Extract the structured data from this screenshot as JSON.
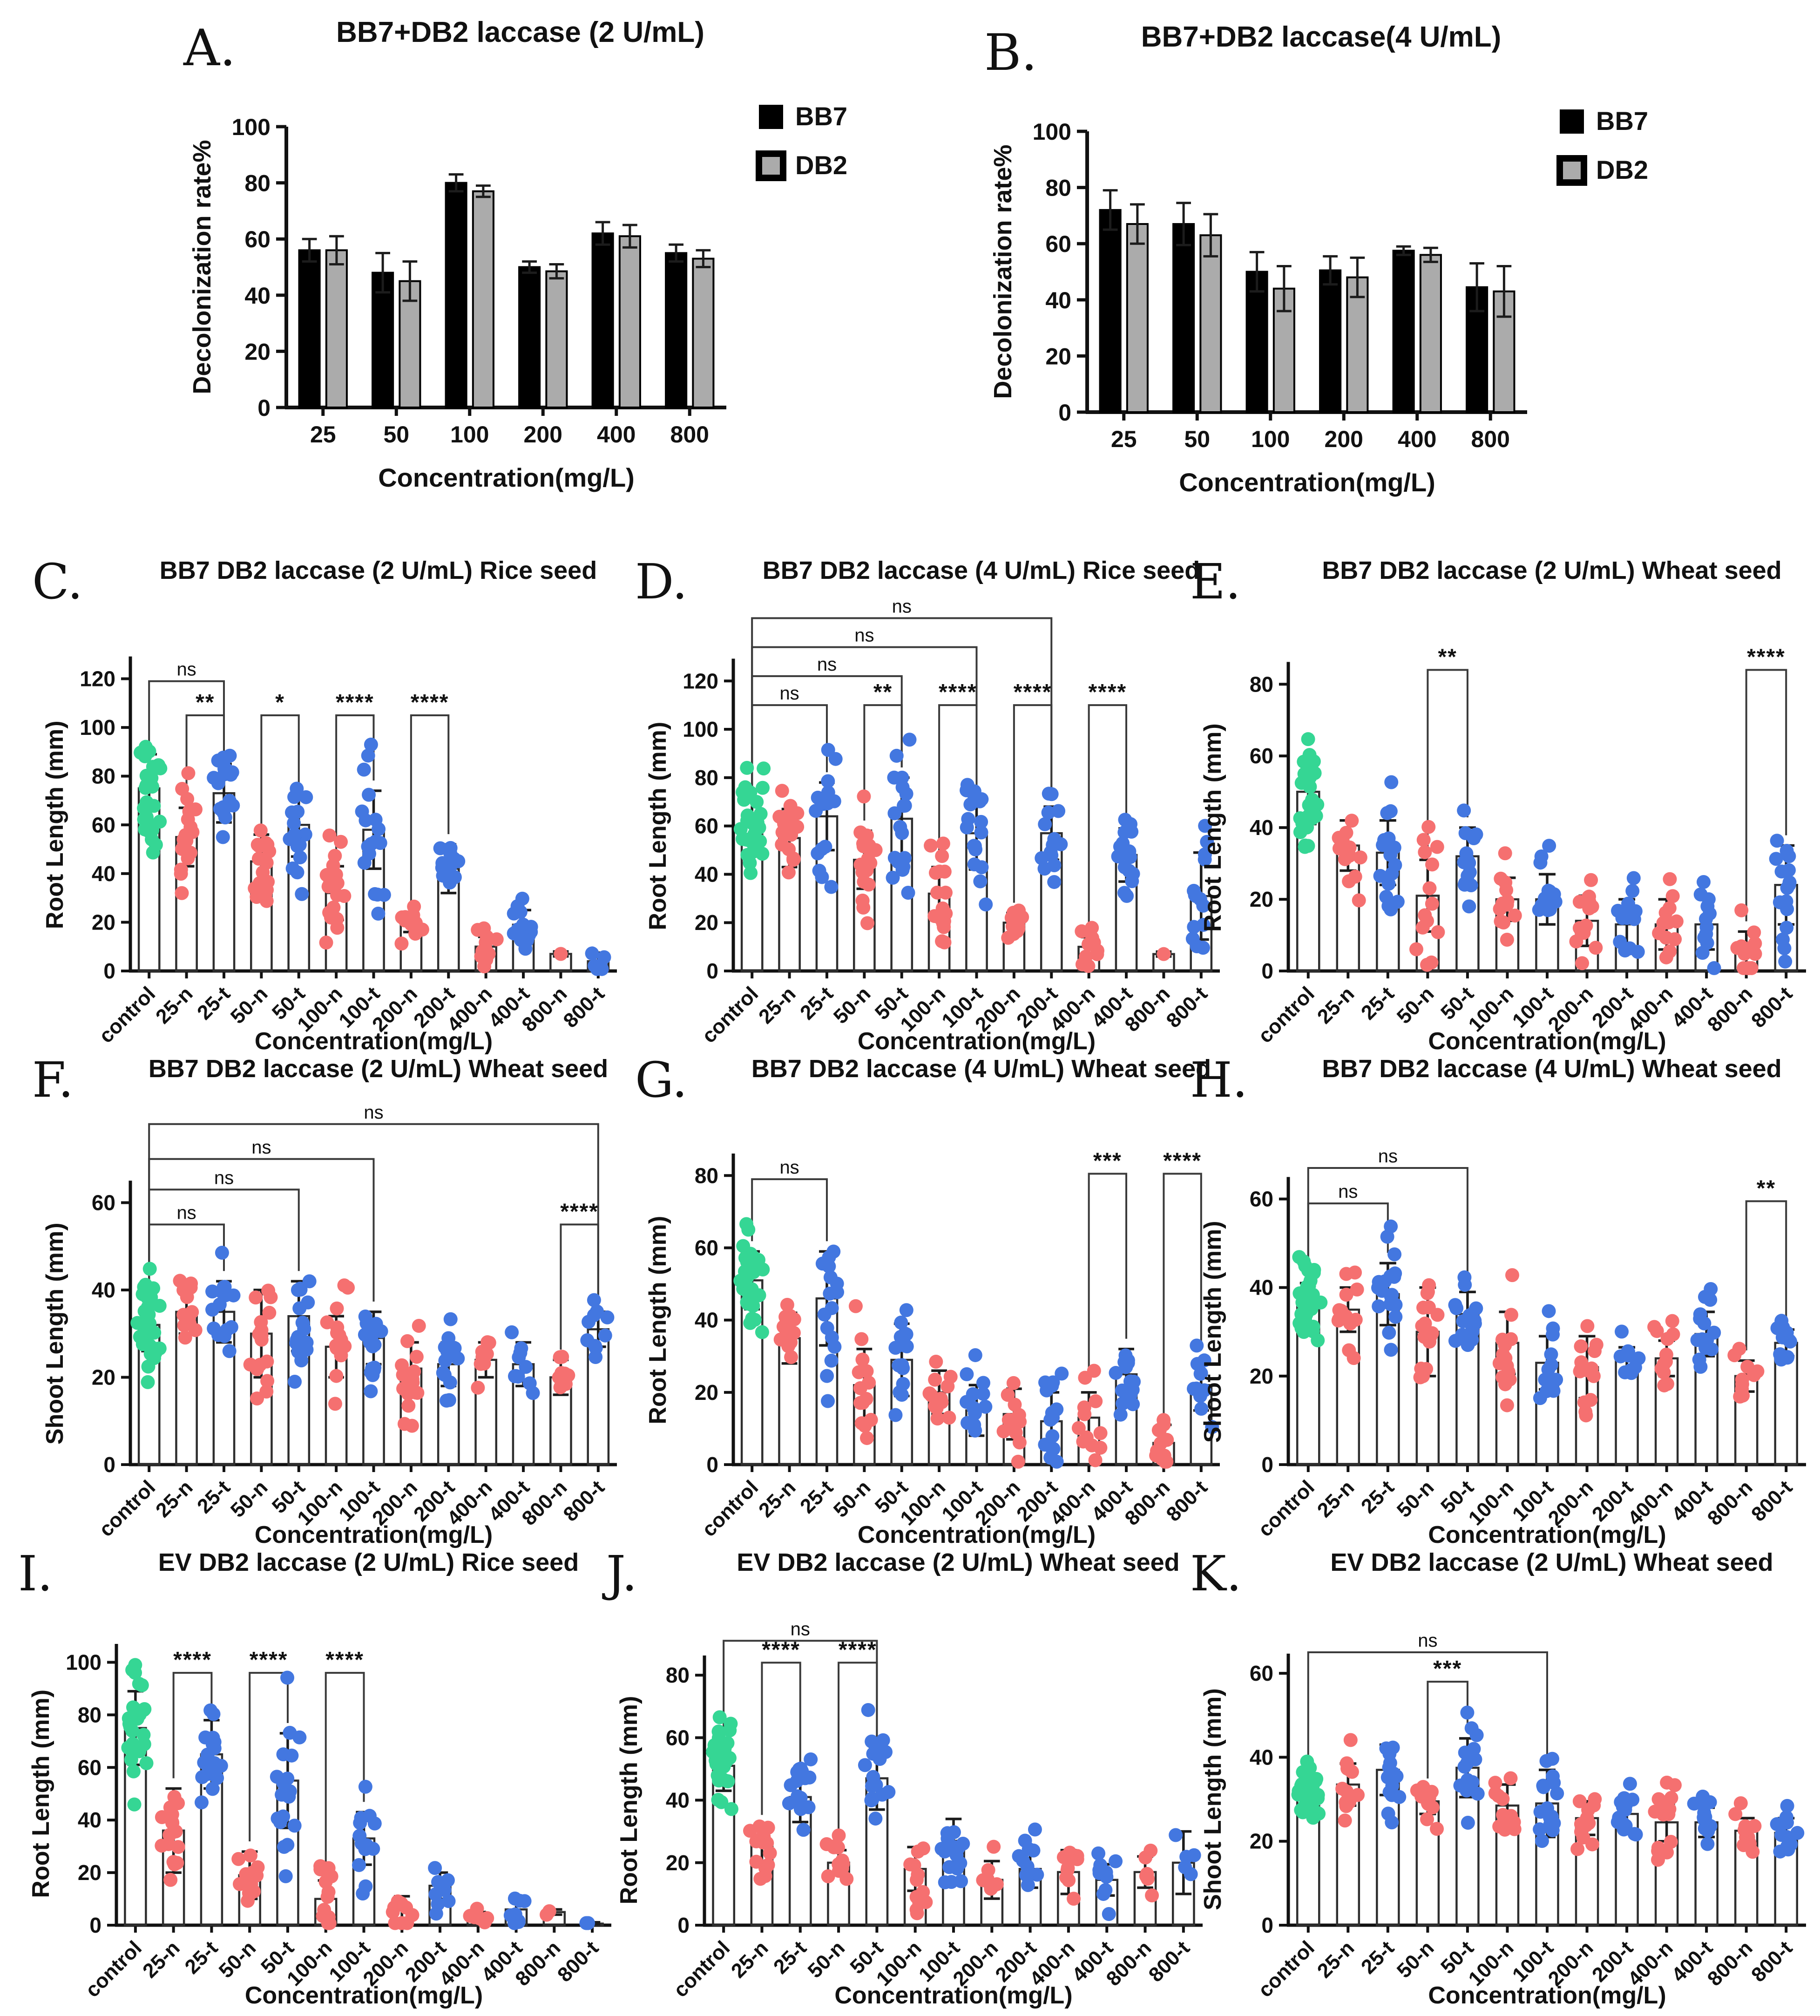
{
  "figure": {
    "background": "#ffffff",
    "shared_xlabel": "Concentration(mg/L)",
    "dot_categories": [
      "control",
      "25-n",
      "25-t",
      "50-n",
      "50-t",
      "100-n",
      "100-t",
      "200-n",
      "200-t",
      "400-n",
      "400-t",
      "800-n",
      "800-t"
    ],
    "bar_categories": [
      "25",
      "50",
      "100",
      "200",
      "400",
      "800"
    ]
  },
  "colors": {
    "control_dot": "#35d694",
    "n_dot": "#f57070",
    "t_dot": "#4377e0",
    "bb7_bar": "#000000",
    "db2_bar": "#ababab",
    "bar_fill": "#ffffff",
    "bar_stroke": "#2e2e2e",
    "axis": "#111111",
    "error": "#1c1c1c",
    "bracket": "#3a3a3a"
  },
  "chart_data": [
    {
      "id": "A",
      "letter": "A.",
      "type": "grouped_bar",
      "title": "BB7+DB2 laccase (2 U/mL)",
      "ylabel": "Decolonization rate%",
      "xlabel": "Concentration(mg/L)",
      "ylim": [
        0,
        100
      ],
      "yticks": [
        0,
        20,
        40,
        60,
        80,
        100
      ],
      "categories": [
        "25",
        "50",
        "100",
        "200",
        "400",
        "800"
      ],
      "legend": [
        "BB7",
        "DB2"
      ],
      "series": [
        {
          "name": "BB7",
          "values": [
            56,
            48,
            80,
            50,
            62,
            55
          ],
          "errors": [
            4,
            7,
            3,
            2,
            4,
            3
          ]
        },
        {
          "name": "DB2",
          "values": [
            56,
            45,
            77,
            48.5,
            61,
            53
          ],
          "errors": [
            5,
            7,
            2,
            2.5,
            4,
            3
          ]
        }
      ]
    },
    {
      "id": "B",
      "letter": "B.",
      "type": "grouped_bar",
      "title": "BB7+DB2 laccase(4 U/mL)",
      "ylabel": "Decolonization rate%",
      "xlabel": "Concentration(mg/L)",
      "ylim": [
        0,
        100
      ],
      "yticks": [
        0,
        20,
        40,
        60,
        80,
        100
      ],
      "categories": [
        "25",
        "50",
        "100",
        "200",
        "400",
        "800"
      ],
      "legend": [
        "BB7",
        "DB2"
      ],
      "series": [
        {
          "name": "BB7",
          "values": [
            72,
            67,
            50,
            50.5,
            57.5,
            44.5
          ],
          "errors": [
            7,
            7.5,
            7,
            5,
            1.5,
            8.5
          ]
        },
        {
          "name": "DB2",
          "values": [
            67,
            63,
            44,
            48,
            56,
            43
          ],
          "errors": [
            7,
            7.5,
            8,
            7,
            2.5,
            9
          ]
        }
      ]
    },
    {
      "id": "C",
      "letter": "C.",
      "type": "dot_bar",
      "title": "BB7 DB2 laccase (2 U/mL)  Rice seed",
      "ylabel": "Root Length (mm)",
      "xlabel": "Concentration(mg/L)",
      "yticks": [
        0,
        20,
        40,
        60,
        80,
        100,
        120
      ],
      "axis_max": 131,
      "categories": [
        "control",
        "25-n",
        "25-t",
        "50-n",
        "50-t",
        "100-n",
        "100-t",
        "200-n",
        "200-t",
        "400-n",
        "400-t",
        "800-n",
        "800-t"
      ],
      "means": [
        75,
        55,
        73,
        45,
        60,
        32,
        58,
        20,
        42,
        10,
        19,
        7,
        4
      ],
      "sds": [
        14,
        12,
        12,
        11,
        13,
        11,
        16,
        4,
        10,
        4,
        6,
        1,
        3.5
      ],
      "npoints": [
        28,
        18,
        18,
        18,
        16,
        18,
        18,
        12,
        16,
        12,
        14,
        1,
        6
      ],
      "annotations": [
        {
          "label": "ns",
          "a": 0,
          "b": 2,
          "y": 119
        },
        {
          "label": "**",
          "a": 1,
          "b": 2,
          "y": 105
        },
        {
          "label": "*",
          "a": 3,
          "b": 4,
          "y": 105
        },
        {
          "label": "****",
          "a": 5,
          "b": 6,
          "y": 105
        },
        {
          "label": "****",
          "a": 7,
          "b": 8,
          "y": 105
        }
      ]
    },
    {
      "id": "D",
      "letter": "D.",
      "type": "dot_bar",
      "title": "BB7 DB2 laccase (4 U/mL) Rice seed",
      "ylabel": "Root Length (mm)",
      "xlabel": "Concentration(mg/L)",
      "yticks": [
        0,
        20,
        40,
        60,
        80,
        100,
        120
      ],
      "axis_max": 132,
      "categories": [
        "control",
        "25-n",
        "25-t",
        "50-n",
        "50-t",
        "100-n",
        "100-t",
        "200-n",
        "200-t",
        "400-n",
        "400-t",
        "800-n",
        "800-t"
      ],
      "means": [
        60,
        55,
        64,
        46,
        63,
        32,
        57,
        20,
        57,
        10,
        48,
        7,
        31
      ],
      "sds": [
        11,
        12,
        14,
        12,
        17,
        11,
        15,
        4,
        11,
        4,
        11,
        1,
        18
      ],
      "npoints": [
        30,
        18,
        16,
        18,
        18,
        18,
        18,
        10,
        14,
        12,
        16,
        1,
        14
      ],
      "annotations": [
        {
          "label": "ns",
          "a": 0,
          "b": 2,
          "y": 110
        },
        {
          "label": "**",
          "a": 3,
          "b": 4,
          "y": 110
        },
        {
          "label": "****",
          "a": 5,
          "b": 6,
          "y": 110
        },
        {
          "label": "****",
          "a": 7,
          "b": 8,
          "y": 110
        },
        {
          "label": "****",
          "a": 9,
          "b": 10,
          "y": 110
        },
        {
          "label": "ns",
          "a": 0,
          "b": 4,
          "y": 122
        },
        {
          "label": "ns",
          "a": 0,
          "b": 6,
          "y": 134
        },
        {
          "label": "ns",
          "a": 0,
          "b": 8,
          "y": 146
        }
      ]
    },
    {
      "id": "E",
      "letter": "E.",
      "type": "dot_bar",
      "title": "BB7 DB2 laccase (2 U/mL) Wheat seed",
      "ylabel": "Root Length (mm)",
      "xlabel": "Concentration(mg/L)",
      "yticks": [
        0,
        20,
        40,
        60,
        80
      ],
      "axis_max": 89,
      "categories": [
        "control",
        "25-n",
        "25-t",
        "50-n",
        "50-t",
        "100-n",
        "100-t",
        "200-n",
        "200-t",
        "400-n",
        "400-t",
        "800-n",
        "800-t"
      ],
      "means": [
        50,
        35,
        33,
        21,
        32,
        20,
        20,
        14,
        13,
        13,
        13,
        6,
        24
      ],
      "sds": [
        9,
        7,
        9,
        10,
        8,
        6,
        7,
        7,
        7,
        7,
        7,
        5,
        11
      ],
      "npoints": [
        30,
        14,
        16,
        14,
        14,
        12,
        16,
        14,
        14,
        12,
        12,
        12,
        16
      ],
      "annotations": [
        {
          "label": "**",
          "a": 3,
          "b": 4,
          "y": 84
        },
        {
          "label": "****",
          "a": 11,
          "b": 12,
          "y": 84
        }
      ]
    },
    {
      "id": "F",
      "letter": "F.",
      "type": "dot_bar",
      "title": "BB7 DB2 laccase (2 U/mL) Wheat seed",
      "ylabel": "Shoot Length (mm)",
      "xlabel": "Concentration(mg/L)",
      "yticks": [
        0,
        20,
        40,
        60
      ],
      "axis_max": 72,
      "categories": [
        "control",
        "25-n",
        "25-t",
        "50-n",
        "50-t",
        "100-n",
        "100-t",
        "200-n",
        "200-t",
        "400-n",
        "400-t",
        "800-n",
        "800-t"
      ],
      "means": [
        32,
        35,
        35,
        30,
        34,
        27,
        29,
        22,
        23,
        24,
        23,
        20,
        31
      ],
      "sds": [
        6,
        5,
        7,
        10,
        8,
        7,
        6,
        6,
        5,
        4,
        5,
        4,
        4
      ],
      "npoints": [
        30,
        14,
        16,
        16,
        18,
        16,
        16,
        16,
        12,
        10,
        10,
        10,
        10
      ],
      "annotations": [
        {
          "label": "ns",
          "a": 0,
          "b": 2,
          "y": 55
        },
        {
          "label": "ns",
          "a": 0,
          "b": 4,
          "y": 63
        },
        {
          "label": "ns",
          "a": 0,
          "b": 6,
          "y": 70
        },
        {
          "label": "ns",
          "a": 0,
          "b": 12,
          "y": 78
        },
        {
          "label": "****",
          "a": 11,
          "b": 12,
          "y": 55
        }
      ]
    },
    {
      "id": "G",
      "letter": "G.",
      "type": "dot_bar",
      "title": "BB7 DB2 laccase (4 U/mL) Wheat seed",
      "ylabel": "Root Length (mm)",
      "xlabel": "Concentration(mg/L)",
      "yticks": [
        0,
        20,
        40,
        60,
        80
      ],
      "axis_max": 87,
      "categories": [
        "control",
        "25-n",
        "25-t",
        "50-n",
        "50-t",
        "100-n",
        "100-t",
        "200-n",
        "200-t",
        "400-n",
        "400-t",
        "800-n",
        "800-t"
      ],
      "means": [
        51,
        35,
        46,
        22,
        29,
        20,
        15,
        14,
        12,
        13,
        25,
        6,
        22
      ],
      "sds": [
        8,
        7,
        13,
        10,
        10,
        6,
        7,
        7,
        8,
        7,
        7,
        5,
        7
      ],
      "npoints": [
        34,
        14,
        16,
        14,
        16,
        12,
        12,
        12,
        16,
        12,
        16,
        12,
        12
      ],
      "annotations": [
        {
          "label": "ns",
          "a": 0,
          "b": 2,
          "y": 79
        },
        {
          "label": "***",
          "a": 9,
          "b": 10,
          "y": 80.5
        },
        {
          "label": "****",
          "a": 11,
          "b": 12,
          "y": 80.5
        }
      ]
    },
    {
      "id": "H",
      "letter": "H.",
      "type": "dot_bar",
      "title": "BB7 DB2 laccase (4 U/mL) Wheat seed",
      "ylabel": "Shoot Length (mm)",
      "xlabel": "Concentration(mg/L)",
      "yticks": [
        0,
        20,
        40,
        60
      ],
      "axis_max": 71,
      "categories": [
        "control",
        "25-n",
        "25-t",
        "50-n",
        "50-t",
        "100-n",
        "100-t",
        "200-n",
        "200-t",
        "400-n",
        "400-t",
        "800-n",
        "800-t"
      ],
      "means": [
        36,
        35,
        38.5,
        30,
        34,
        27.5,
        23,
        22,
        23.5,
        24,
        29.5,
        20,
        27.5
      ],
      "sds": [
        5,
        5,
        7,
        10,
        5,
        7,
        6,
        7,
        3,
        4,
        5,
        3.5,
        3
      ],
      "npoints": [
        30,
        14,
        18,
        16,
        16,
        14,
        12,
        14,
        10,
        12,
        14,
        12,
        12
      ],
      "annotations": [
        {
          "label": "ns",
          "a": 0,
          "b": 2,
          "y": 59
        },
        {
          "label": "ns",
          "a": 0,
          "b": 4,
          "y": 67
        },
        {
          "label": "**",
          "a": 11,
          "b": 12,
          "y": 59.5
        }
      ]
    },
    {
      "id": "I",
      "letter": "I.",
      "type": "dot_bar",
      "title": "EV DB2 laccase (2 U/mL) Rice seed",
      "ylabel": "Root Length (mm)",
      "xlabel": "Concentration(mg/L)",
      "yticks": [
        0,
        20,
        40,
        60,
        80,
        100
      ],
      "axis_max": 107,
      "categories": [
        "control",
        "25-n",
        "25-t",
        "50-n",
        "50-t",
        "100-n",
        "100-t",
        "200-n",
        "200-t",
        "400-n",
        "400-t",
        "800-n",
        "800-t"
      ],
      "means": [
        75,
        36,
        65,
        19,
        55,
        10,
        33,
        6,
        15,
        3.5,
        6,
        5,
        0.6
      ],
      "sds": [
        14,
        16,
        13,
        9,
        18,
        7,
        10,
        5,
        5,
        1.5,
        4,
        1,
        0.5
      ],
      "npoints": [
        26,
        16,
        18,
        14,
        18,
        12,
        14,
        10,
        10,
        6,
        10,
        2,
        2
      ],
      "annotations": [
        {
          "label": "****",
          "a": 1,
          "b": 2,
          "y": 96
        },
        {
          "label": "****",
          "a": 3,
          "b": 4,
          "y": 96
        },
        {
          "label": "****",
          "a": 5,
          "b": 6,
          "y": 96
        }
      ]
    },
    {
      "id": "J",
      "letter": "J.",
      "type": "dot_bar",
      "title": "EV DB2 laccase (2 U/mL) Wheat seed",
      "ylabel": "Root Length (mm)",
      "xlabel": "Concentration(mg/L)",
      "yticks": [
        0,
        20,
        40,
        60,
        80
      ],
      "axis_max": 90,
      "categories": [
        "control",
        "25-n",
        "25-t",
        "50-n",
        "50-t",
        "100-n",
        "100-t",
        "200-n",
        "200-t",
        "400-n",
        "400-t",
        "800-n",
        "800-t"
      ],
      "means": [
        51,
        26,
        41,
        20,
        47,
        18,
        27,
        14.5,
        18,
        17,
        14.5,
        17,
        20
      ],
      "sds": [
        8,
        6,
        8,
        4,
        10,
        7,
        7,
        6,
        6,
        7,
        5,
        5,
        10
      ],
      "npoints": [
        30,
        14,
        16,
        12,
        18,
        12,
        16,
        8,
        10,
        10,
        10,
        6,
        5
      ],
      "annotations": [
        {
          "label": "****",
          "a": 1,
          "b": 2,
          "y": 84
        },
        {
          "label": "****",
          "a": 3,
          "b": 4,
          "y": 84
        },
        {
          "label": "ns",
          "a": 0,
          "b": 4,
          "y": 91
        }
      ]
    },
    {
      "id": "K",
      "letter": "K.",
      "type": "dot_bar",
      "title": "EV DB2 laccase (2 U/mL) Wheat seed",
      "ylabel": "Shoot Length (mm)",
      "xlabel": "Concentration(mg/L)",
      "yticks": [
        0,
        20,
        40,
        60
      ],
      "axis_max": 67,
      "categories": [
        "control",
        "25-n",
        "25-t",
        "50-n",
        "50-t",
        "100-n",
        "100-t",
        "200-n",
        "200-t",
        "400-n",
        "400-t",
        "800-n",
        "800-t"
      ],
      "means": [
        32,
        33.5,
        37,
        29.5,
        37.5,
        28.5,
        29,
        25.5,
        26.5,
        24.5,
        24.5,
        22.5,
        22
      ],
      "sds": [
        4,
        5,
        6,
        3,
        7,
        5,
        8,
        4,
        4.5,
        4.5,
        3.5,
        3,
        3.5
      ],
      "npoints": [
        30,
        12,
        14,
        10,
        16,
        12,
        16,
        12,
        14,
        14,
        12,
        12,
        12
      ],
      "annotations": [
        {
          "label": "***",
          "a": 3,
          "b": 4,
          "y": 58
        },
        {
          "label": "ns",
          "a": 0,
          "b": 6,
          "y": 65
        }
      ]
    }
  ]
}
